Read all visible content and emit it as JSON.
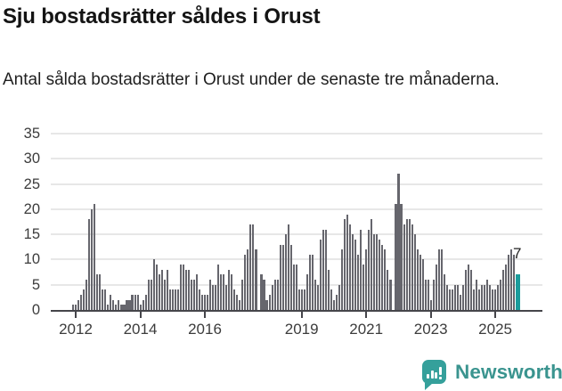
{
  "header": {
    "title": "Sju bostadsrätter såldes i Orust",
    "subtitle": "Antal sålda bostadsrätter i Orust under de senaste tre månaderna."
  },
  "annotation": {
    "last_value_label": "7"
  },
  "footer": {
    "brand_name": "Newsworthy"
  },
  "colors": {
    "bar": "#66666d",
    "highlight_bar": "#1b9c9c",
    "gridline": "#e7e7e7",
    "axis": "#45454a",
    "text": "#141414",
    "brand_teal": "#35a09b"
  },
  "chart_data": {
    "type": "bar",
    "title": "Antal sålda bostadsrätter i Orust under de senaste tre månaderna",
    "xlabel": "",
    "ylabel": "",
    "ylim": [
      0,
      35
    ],
    "grid": true,
    "x_unit": "month",
    "y_ticks": [
      0,
      5,
      10,
      15,
      20,
      25,
      30,
      35
    ],
    "x_ticks": [
      {
        "label": "2012",
        "index": 1
      },
      {
        "label": "2014",
        "index": 25
      },
      {
        "label": "2016",
        "index": 49
      },
      {
        "label": "2019",
        "index": 85
      },
      {
        "label": "2021",
        "index": 109
      },
      {
        "label": "2023",
        "index": 133
      },
      {
        "label": "2025",
        "index": 157
      }
    ],
    "values": [
      1,
      1,
      2,
      3,
      4,
      6,
      18,
      20,
      21,
      7,
      7,
      4,
      4,
      1,
      3,
      2,
      1,
      2,
      1,
      1,
      2,
      2,
      3,
      3,
      3,
      1,
      2,
      3,
      6,
      6,
      10,
      9,
      7,
      8,
      6,
      8,
      4,
      4,
      4,
      4,
      9,
      9,
      8,
      8,
      6,
      6,
      7,
      4,
      3,
      3,
      3,
      6,
      5,
      5,
      9,
      7,
      7,
      5,
      8,
      7,
      4,
      3,
      2,
      6,
      11,
      12,
      17,
      17,
      12,
      0,
      7,
      6,
      2,
      3,
      5,
      6,
      6,
      13,
      13,
      15,
      17,
      13,
      9,
      9,
      4,
      4,
      4,
      7,
      11,
      11,
      6,
      5,
      14,
      16,
      16,
      8,
      4,
      2,
      3,
      5,
      12,
      18,
      19,
      17,
      15,
      14,
      11,
      16,
      9,
      12,
      16,
      18,
      15,
      15,
      14,
      13,
      12,
      8,
      6,
      0,
      21,
      27,
      21,
      17,
      18,
      18,
      17,
      15,
      12,
      11,
      10,
      6,
      6,
      2,
      6,
      9,
      12,
      12,
      7,
      5,
      4,
      4,
      5,
      5,
      3,
      5,
      8,
      9,
      8,
      4,
      6,
      4,
      5,
      5,
      6,
      5,
      4,
      4,
      5,
      6,
      8,
      9,
      11,
      12,
      11,
      7
    ],
    "highlight_last": true,
    "last_value": 7
  }
}
